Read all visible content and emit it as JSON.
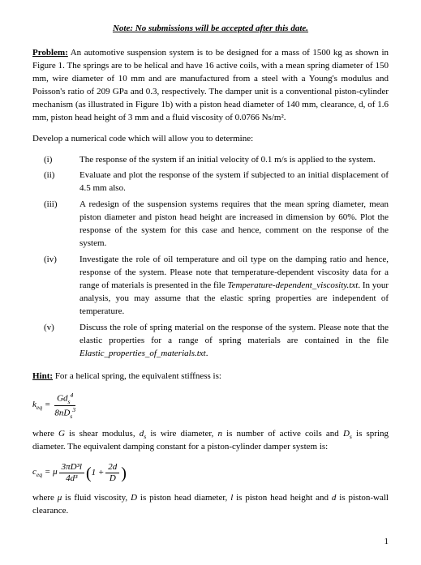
{
  "note": "Note: No submissions will be accepted after this date.",
  "problem_label": "Problem:",
  "problem_text": " An automotive suspension system is to be designed for a mass of 1500 kg as shown in Figure 1. The springs are to be helical and have 16 active coils, with a mean spring diameter of 150 mm, wire diameter of 10 mm and are manufactured from a steel with a Young's modulus and Poisson's ratio of 209 GPa and 0.3, respectively. The damper unit is a conventional piston-cylinder mechanism (as illustrated in Figure 1b) with a piston head diameter of 140 mm, clearance, d, of 1.6 mm, piston head height of 3 mm and a fluid viscosity of 0.0766 Ns/m².",
  "develop": "Develop a numerical code which will allow you to determine:",
  "items": [
    {
      "num": "(i)",
      "body": "The response of the system if an initial velocity of 0.1 m/s is applied to the system."
    },
    {
      "num": "(ii)",
      "body": "Evaluate and plot the response of the system if subjected to an initial displacement of 4.5 mm also."
    },
    {
      "num": "(iii)",
      "body": "A redesign of the suspension systems requires that the mean spring diameter, mean piston diameter and piston head height are increased in dimension by 60%. Plot the response of the system for this case and hence, comment on the response of the system."
    },
    {
      "num": "(iv)",
      "body_pre": "Investigate the role of oil temperature and oil type on the damping ratio and hence, response of the system. Please note that temperature-dependent viscosity data for a range of materials is presented in the file ",
      "file": "Temperature-dependent_viscosity.txt",
      "body_post": ". In your analysis, you may assume that the elastic spring properties are independent of temperature."
    },
    {
      "num": "(v)",
      "body_pre": "Discuss the role of spring material on the response of the system. Please note that the elastic properties for a range of spring materials are contained in the file ",
      "file": "Elastic_properties_of_materials.txt",
      "body_post": "."
    }
  ],
  "hint_label": "Hint:",
  "hint_text": " For a helical spring, the equivalent stiffness is:",
  "eq1": {
    "lhs": "k",
    "lhs_sub": "eq",
    "num_a": "Gd",
    "num_sub": "s",
    "num_exp": "4",
    "den_a": "8nD",
    "den_sub": "s",
    "den_exp": "3"
  },
  "mid_a": "where ",
  "mid_G": "G",
  "mid_b": " is shear modulus, ",
  "mid_ds": "d",
  "mid_ds_sub": "s",
  "mid_c": " is wire diameter, ",
  "mid_n": "n",
  "mid_d": " is number of active coils and ",
  "mid_Ds": "D",
  "mid_Ds_sub": "s",
  "mid_e": " is spring diameter. The equivalent damping constant for a piston-cylinder damper system is:",
  "eq2": {
    "lhs": "c",
    "lhs_sub": "eq",
    "mu": "μ",
    "num": "3πD³l",
    "den": "4d³",
    "p_num": "2d",
    "p_den": "D"
  },
  "tail_a": "where ",
  "tail_mu": "μ",
  "tail_b": " is fluid viscosity, ",
  "tail_D": "D",
  "tail_c": " is piston head diameter, ",
  "tail_l": "l",
  "tail_d": " is piston head height and ",
  "tail_dd": "d",
  "tail_e": " is piston-wall clearance.",
  "pagenum": "1"
}
